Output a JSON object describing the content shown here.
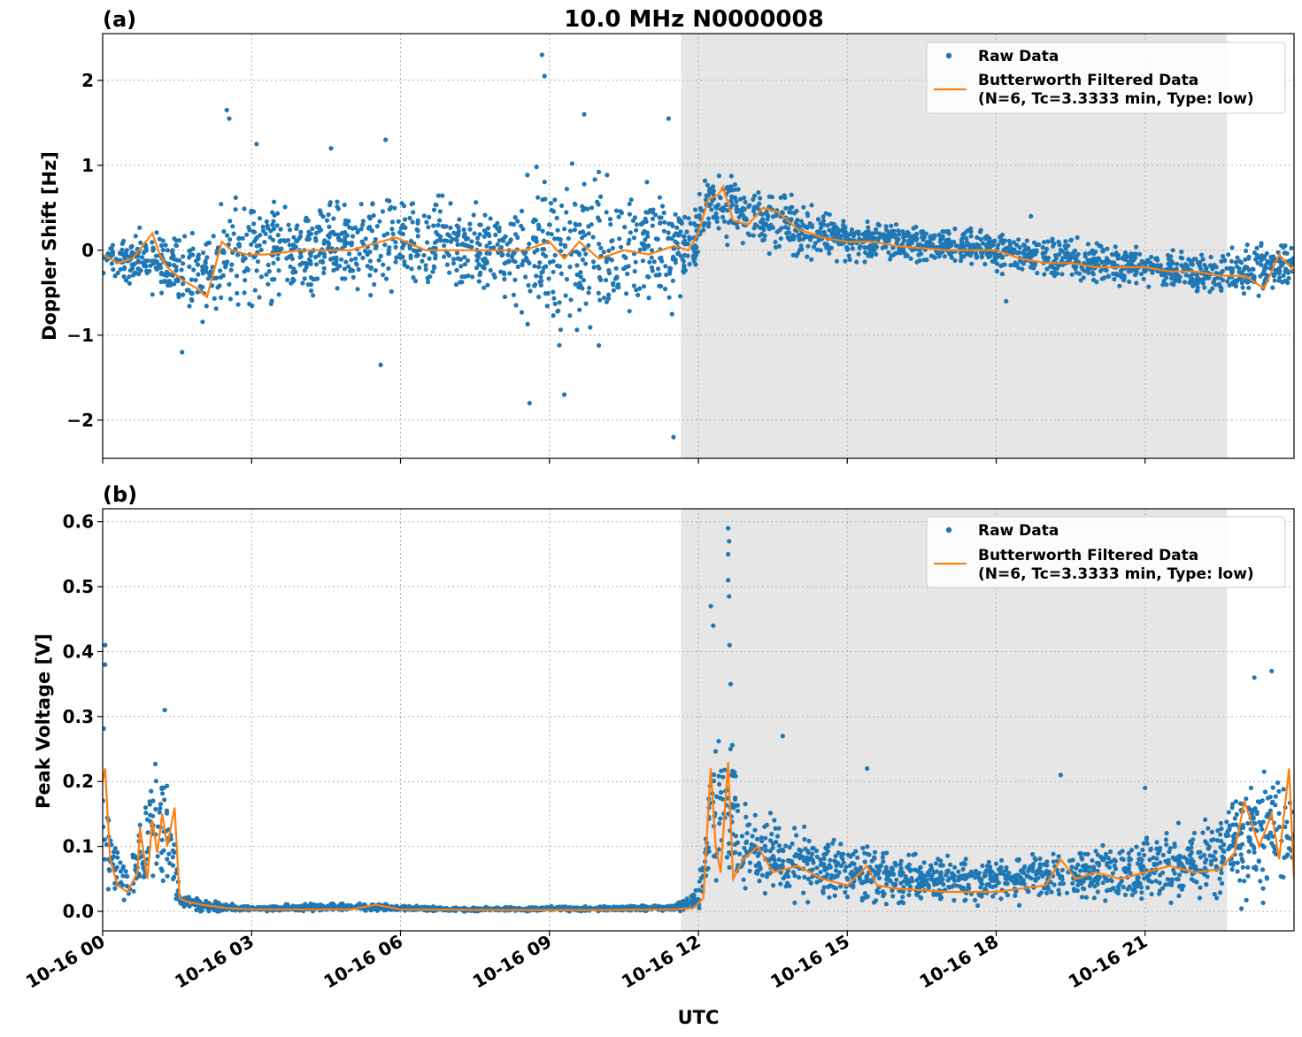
{
  "figure": {
    "title": "10.0 MHz N0000008",
    "xlabel": "UTC",
    "x_ticks": [
      "10-16 00",
      "10-16 03",
      "10-16 06",
      "10-16 09",
      "10-16 12",
      "10-16 15",
      "10-16 18",
      "10-16 21"
    ],
    "colors": {
      "raw": "#1f77b4",
      "filtered": "#ff7f0e",
      "shade": "#e6e6e6",
      "grid": "#b0b0b0"
    }
  },
  "chart_data": [
    {
      "type": "line",
      "panel_label": "(a)",
      "title": "10.0 MHz N0000008",
      "xlabel": "",
      "ylabel": "Doppler Shift [Hz]",
      "xlim_hours": [
        0,
        24
      ],
      "ylim": [
        -2.45,
        2.55
      ],
      "yticks": [
        2,
        1,
        0,
        -1,
        -2
      ],
      "ytick_labels": [
        "2",
        "1",
        "0",
        "−1",
        "−2"
      ],
      "grid": true,
      "legend_position": "upper right",
      "shaded_region_hours": [
        11.65,
        22.65
      ],
      "series": [
        {
          "name": "Raw Data",
          "kind": "scatter",
          "envelope": [
            {
              "x": 0.0,
              "lo": -0.35,
              "hi": 0.2
            },
            {
              "x": 0.8,
              "lo": -0.5,
              "hi": 0.3
            },
            {
              "x": 1.5,
              "lo": -0.8,
              "hi": 0.3
            },
            {
              "x": 2.0,
              "lo": -0.85,
              "hi": 0.3
            },
            {
              "x": 2.3,
              "lo": -0.9,
              "hi": 0.5
            },
            {
              "x": 2.6,
              "lo": -0.9,
              "hi": 1.1
            },
            {
              "x": 3.0,
              "lo": -0.7,
              "hi": 0.8
            },
            {
              "x": 4.0,
              "lo": -0.6,
              "hi": 0.6
            },
            {
              "x": 5.0,
              "lo": -0.6,
              "hi": 0.7
            },
            {
              "x": 6.0,
              "lo": -0.6,
              "hi": 0.8
            },
            {
              "x": 7.0,
              "lo": -0.6,
              "hi": 0.7
            },
            {
              "x": 8.0,
              "lo": -0.6,
              "hi": 0.6
            },
            {
              "x": 8.6,
              "lo": -1.1,
              "hi": 1.0
            },
            {
              "x": 9.2,
              "lo": -1.2,
              "hi": 1.2
            },
            {
              "x": 10.0,
              "lo": -1.2,
              "hi": 1.1
            },
            {
              "x": 10.7,
              "lo": -0.9,
              "hi": 0.9
            },
            {
              "x": 11.3,
              "lo": -0.8,
              "hi": 0.9
            },
            {
              "x": 11.9,
              "lo": -0.5,
              "hi": 0.6
            },
            {
              "x": 12.2,
              "lo": 0.2,
              "hi": 0.9
            },
            {
              "x": 12.6,
              "lo": 0.1,
              "hi": 0.9
            },
            {
              "x": 13.0,
              "lo": 0.05,
              "hi": 0.85
            },
            {
              "x": 13.6,
              "lo": -0.1,
              "hi": 0.75
            },
            {
              "x": 14.5,
              "lo": -0.15,
              "hi": 0.45
            },
            {
              "x": 16.0,
              "lo": -0.15,
              "hi": 0.35
            },
            {
              "x": 17.5,
              "lo": -0.2,
              "hi": 0.3
            },
            {
              "x": 19.0,
              "lo": -0.4,
              "hi": 0.2
            },
            {
              "x": 20.5,
              "lo": -0.45,
              "hi": 0.1
            },
            {
              "x": 22.0,
              "lo": -0.55,
              "hi": 0.0
            },
            {
              "x": 22.8,
              "lo": -0.6,
              "hi": 0.05
            },
            {
              "x": 23.5,
              "lo": -0.5,
              "hi": 0.1
            },
            {
              "x": 24.0,
              "lo": -0.45,
              "hi": 0.15
            }
          ],
          "outliers": [
            {
              "x": 2.5,
              "y": 1.65
            },
            {
              "x": 2.55,
              "y": 1.55
            },
            {
              "x": 1.6,
              "y": -1.2
            },
            {
              "x": 3.1,
              "y": 1.25
            },
            {
              "x": 4.6,
              "y": 1.2
            },
            {
              "x": 5.7,
              "y": 1.3
            },
            {
              "x": 5.6,
              "y": -1.35
            },
            {
              "x": 8.85,
              "y": 2.3
            },
            {
              "x": 8.9,
              "y": 2.05
            },
            {
              "x": 8.6,
              "y": -1.8
            },
            {
              "x": 9.3,
              "y": -1.7
            },
            {
              "x": 9.7,
              "y": 1.6
            },
            {
              "x": 11.4,
              "y": 1.55
            },
            {
              "x": 11.5,
              "y": -2.2
            },
            {
              "x": 18.7,
              "y": 0.4
            },
            {
              "x": 18.2,
              "y": -0.6
            }
          ]
        },
        {
          "name": "Butterworth Filtered Data\n(N=6, Tc=3.3333 min, Type: low)",
          "kind": "line",
          "x": [
            0.0,
            0.3,
            0.6,
            1.0,
            1.15,
            1.3,
            1.6,
            1.9,
            2.1,
            2.4,
            2.6,
            2.9,
            3.3,
            4.0,
            5.0,
            5.9,
            6.5,
            7.5,
            8.5,
            9.0,
            9.3,
            9.6,
            10.0,
            10.5,
            11.0,
            11.5,
            11.8,
            12.0,
            12.2,
            12.4,
            12.5,
            12.7,
            13.0,
            13.3,
            13.6,
            14.0,
            14.5,
            15.0,
            15.5,
            16.0,
            17.0,
            18.0,
            18.5,
            19.0,
            19.5,
            20.0,
            20.5,
            21.0,
            21.5,
            22.0,
            22.5,
            23.0,
            23.4,
            23.7,
            24.0
          ],
          "y": [
            -0.05,
            -0.15,
            -0.1,
            0.2,
            -0.05,
            -0.2,
            -0.35,
            -0.45,
            -0.55,
            0.1,
            0.0,
            -0.05,
            -0.05,
            0.0,
            0.0,
            0.15,
            0.0,
            0.0,
            0.0,
            0.1,
            -0.1,
            0.1,
            -0.1,
            0.0,
            -0.05,
            0.05,
            0.0,
            0.2,
            0.6,
            0.65,
            0.75,
            0.35,
            0.3,
            0.5,
            0.45,
            0.25,
            0.15,
            0.1,
            0.1,
            0.05,
            0.0,
            0.0,
            -0.1,
            -0.15,
            -0.15,
            -0.2,
            -0.2,
            -0.2,
            -0.25,
            -0.25,
            -0.3,
            -0.3,
            -0.45,
            -0.05,
            -0.25
          ]
        }
      ]
    },
    {
      "type": "line",
      "panel_label": "(b)",
      "title": "",
      "xlabel": "UTC",
      "ylabel": "Peak Voltage [V]",
      "xlim_hours": [
        0,
        24
      ],
      "ylim": [
        -0.03,
        0.62
      ],
      "yticks": [
        0.0,
        0.1,
        0.2,
        0.3,
        0.4,
        0.5,
        0.6
      ],
      "ytick_labels": [
        "0.0",
        "0.1",
        "0.2",
        "0.3",
        "0.4",
        "0.5",
        "0.6"
      ],
      "grid": true,
      "legend_position": "upper right",
      "shaded_region_hours": [
        11.65,
        22.65
      ],
      "series": [
        {
          "name": "Raw Data",
          "kind": "scatter",
          "envelope": [
            {
              "x": 0.0,
              "lo": 0.02,
              "hi": 0.35
            },
            {
              "x": 0.15,
              "lo": 0.02,
              "hi": 0.15
            },
            {
              "x": 0.5,
              "lo": 0.01,
              "hi": 0.08
            },
            {
              "x": 0.8,
              "lo": 0.01,
              "hi": 0.17
            },
            {
              "x": 1.0,
              "lo": 0.01,
              "hi": 0.22
            },
            {
              "x": 1.3,
              "lo": 0.01,
              "hi": 0.27
            },
            {
              "x": 1.55,
              "lo": 0.005,
              "hi": 0.03
            },
            {
              "x": 2.0,
              "lo": 0.0,
              "hi": 0.02
            },
            {
              "x": 3.0,
              "lo": 0.0,
              "hi": 0.008
            },
            {
              "x": 5.0,
              "lo": 0.0,
              "hi": 0.015
            },
            {
              "x": 7.0,
              "lo": 0.0,
              "hi": 0.006
            },
            {
              "x": 11.5,
              "lo": 0.0,
              "hi": 0.01
            },
            {
              "x": 12.0,
              "lo": 0.0,
              "hi": 0.04
            },
            {
              "x": 12.3,
              "lo": 0.02,
              "hi": 0.3
            },
            {
              "x": 12.6,
              "lo": 0.02,
              "hi": 0.3
            },
            {
              "x": 13.0,
              "lo": 0.01,
              "hi": 0.18
            },
            {
              "x": 14.0,
              "lo": 0.01,
              "hi": 0.14
            },
            {
              "x": 15.0,
              "lo": 0.01,
              "hi": 0.12
            },
            {
              "x": 16.5,
              "lo": 0.005,
              "hi": 0.09
            },
            {
              "x": 18.0,
              "lo": 0.005,
              "hi": 0.09
            },
            {
              "x": 19.5,
              "lo": 0.005,
              "hi": 0.1
            },
            {
              "x": 21.0,
              "lo": 0.01,
              "hi": 0.12
            },
            {
              "x": 22.5,
              "lo": 0.01,
              "hi": 0.16
            },
            {
              "x": 23.5,
              "lo": 0.02,
              "hi": 0.25
            },
            {
              "x": 24.0,
              "lo": 0.02,
              "hi": 0.2
            }
          ],
          "outliers": [
            {
              "x": 0.05,
              "y": 0.41
            },
            {
              "x": 0.05,
              "y": 0.38
            },
            {
              "x": 1.25,
              "y": 0.31
            },
            {
              "x": 12.25,
              "y": 0.47
            },
            {
              "x": 12.3,
              "y": 0.44
            },
            {
              "x": 12.6,
              "y": 0.59
            },
            {
              "x": 12.62,
              "y": 0.57
            },
            {
              "x": 12.6,
              "y": 0.55
            },
            {
              "x": 12.6,
              "y": 0.51
            },
            {
              "x": 12.62,
              "y": 0.485
            },
            {
              "x": 12.63,
              "y": 0.41
            },
            {
              "x": 12.65,
              "y": 0.35
            },
            {
              "x": 13.7,
              "y": 0.27
            },
            {
              "x": 15.4,
              "y": 0.22
            },
            {
              "x": 19.3,
              "y": 0.21
            },
            {
              "x": 21.0,
              "y": 0.19
            },
            {
              "x": 23.2,
              "y": 0.36
            },
            {
              "x": 23.55,
              "y": 0.37
            }
          ]
        },
        {
          "name": "Butterworth Filtered Data\n(N=6, Tc=3.3333 min, Type: low)",
          "kind": "line",
          "x": [
            0.0,
            0.05,
            0.15,
            0.3,
            0.5,
            0.7,
            0.75,
            0.9,
            1.0,
            1.1,
            1.2,
            1.3,
            1.45,
            1.55,
            1.7,
            2.0,
            2.5,
            3.0,
            4.0,
            5.0,
            5.5,
            6.0,
            8.0,
            10.0,
            11.5,
            11.9,
            12.1,
            12.25,
            12.35,
            12.45,
            12.6,
            12.7,
            12.9,
            13.2,
            13.5,
            14.0,
            14.5,
            15.0,
            15.4,
            15.6,
            16.0,
            17.0,
            18.0,
            19.0,
            19.3,
            19.6,
            20.0,
            20.5,
            21.0,
            21.5,
            22.0,
            22.5,
            22.8,
            23.0,
            23.3,
            23.55,
            23.7,
            23.9,
            24.0
          ],
          "y": [
            0.2,
            0.22,
            0.08,
            0.04,
            0.03,
            0.06,
            0.13,
            0.05,
            0.14,
            0.09,
            0.15,
            0.1,
            0.16,
            0.02,
            0.015,
            0.01,
            0.005,
            0.003,
            0.003,
            0.003,
            0.01,
            0.003,
            0.002,
            0.002,
            0.003,
            0.005,
            0.02,
            0.22,
            0.1,
            0.06,
            0.23,
            0.05,
            0.08,
            0.1,
            0.06,
            0.07,
            0.05,
            0.04,
            0.07,
            0.04,
            0.035,
            0.03,
            0.03,
            0.04,
            0.08,
            0.05,
            0.06,
            0.05,
            0.06,
            0.07,
            0.06,
            0.065,
            0.09,
            0.17,
            0.1,
            0.15,
            0.08,
            0.22,
            0.05
          ]
        }
      ]
    }
  ]
}
